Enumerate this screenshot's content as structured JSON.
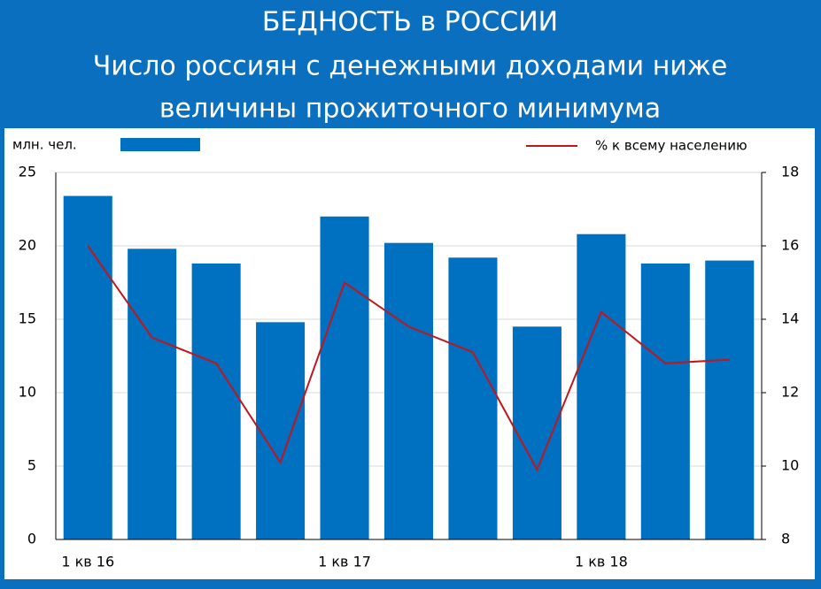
{
  "chart_data": {
    "type": "bar-line",
    "title": "БЕДНОСТЬ в РОССИИ",
    "subtitle": [
      "Число россиян с денежными доходами ниже",
      "величины прожиточного минимума"
    ],
    "y_label": "млн. чел.",
    "categories": [
      "1 кв 16",
      null,
      null,
      null,
      "1 кв 17",
      null,
      null,
      null,
      "1 кв 18",
      null,
      null
    ],
    "series": [
      {
        "type": "bar",
        "color": "#0070c0",
        "values": [
          23.4,
          19.8,
          18.8,
          14.8,
          22.0,
          20.2,
          19.2,
          14.5,
          20.8,
          18.8,
          19.0
        ]
      },
      {
        "type": "line",
        "name": "% к всему населению",
        "color": "#c0161e",
        "axis": "y2",
        "values": [
          16.0,
          13.5,
          12.8,
          10.1,
          15.0,
          13.8,
          13.1,
          9.9,
          14.2,
          12.8,
          12.9
        ]
      }
    ],
    "ylim": [
      0,
      25
    ],
    "yticks": [
      0,
      5,
      10,
      15,
      20,
      25
    ],
    "y2lim": [
      8,
      18
    ],
    "y2ticks": [
      8,
      10,
      12,
      14,
      16,
      18
    ],
    "grid": true
  }
}
